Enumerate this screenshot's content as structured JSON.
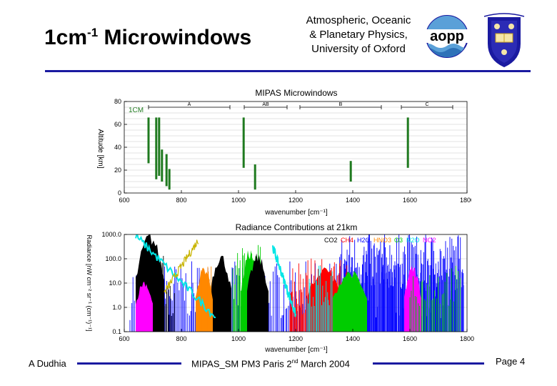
{
  "header": {
    "title_main": "1cm",
    "title_sup": "-1",
    "title_rest": " Microwindows",
    "affiliation": [
      "Atmospheric, Oceanic",
      "& Planetary Physics,",
      "University of Oxford"
    ],
    "aopp_logo_text": "aopp",
    "accent_color": "#1a1aa0"
  },
  "footer": {
    "author": "A Dudhia",
    "meeting_pre": "MIPAS_SM PM3 Paris 2",
    "meeting_sup": "nd",
    "meeting_post": " March 2004",
    "page": "Page 4"
  },
  "chart_data": [
    {
      "type": "bar",
      "title": "MIPAS Microwindows",
      "xlabel": "wavenumber [cm⁻¹]",
      "ylabel": "Altitude [km]",
      "xlim": [
        600,
        1800
      ],
      "ylim": [
        0,
        80
      ],
      "xticks": [
        600,
        800,
        1000,
        1200,
        1400,
        1600,
        1800
      ],
      "xtick_labels": [
        "600",
        "800",
        "1000",
        "1200",
        "1400",
        "1600",
        "1800"
      ],
      "yticks": [
        0,
        20,
        40,
        60,
        80
      ],
      "ytick_labels": [
        "0",
        "20",
        "40",
        "60",
        "80"
      ],
      "annotation": "1CM",
      "bands": [
        {
          "label": "A",
          "x0": 685,
          "x1": 970
        },
        {
          "label": "AB",
          "x0": 1020,
          "x1": 1170
        },
        {
          "label": "B",
          "x0": 1215,
          "x1": 1500
        },
        {
          "label": "C",
          "x0": 1570,
          "x1": 1750
        }
      ],
      "microwindows": [
        {
          "x": 685,
          "y0": 26,
          "y1": 66
        },
        {
          "x": 712,
          "y0": 12,
          "y1": 66
        },
        {
          "x": 722,
          "y0": 15,
          "y1": 66
        },
        {
          "x": 732,
          "y0": 10,
          "y1": 38
        },
        {
          "x": 748,
          "y0": 6,
          "y1": 34
        },
        {
          "x": 758,
          "y0": 3,
          "y1": 21
        },
        {
          "x": 1018,
          "y0": 22,
          "y1": 66
        },
        {
          "x": 1058,
          "y0": 3,
          "y1": 25
        },
        {
          "x": 1393,
          "y0": 10,
          "y1": 28
        },
        {
          "x": 1593,
          "y0": 22,
          "y1": 66
        }
      ],
      "bar_color": "#1f7a1f",
      "grid": true
    },
    {
      "type": "line",
      "title": "Radiance Contributions at 21km",
      "xlabel": "wavenumber [cm⁻¹]",
      "ylabel": "Radiance [nW cm⁻² sr⁻¹ (cm⁻¹)⁻¹]",
      "xlim": [
        600,
        1800
      ],
      "ylog": true,
      "ylim": [
        0.1,
        1000
      ],
      "xticks": [
        600,
        800,
        1000,
        1200,
        1400,
        1600,
        1800
      ],
      "xtick_labels": [
        "600",
        "800",
        "1000",
        "1200",
        "1400",
        "1600",
        "1800"
      ],
      "yticks": [
        0.1,
        1,
        10,
        100,
        1000
      ],
      "ytick_labels": [
        "0.1",
        "1.0",
        "10.0",
        "100.0",
        "1000.0"
      ],
      "series": [
        {
          "name": "CO2",
          "color": "#000000"
        },
        {
          "name": "CH4",
          "color": "#ff0000"
        },
        {
          "name": "H2O",
          "color": "#0000ff"
        },
        {
          "name": "HNO3",
          "color": "#ff8800"
        },
        {
          "name": "O3",
          "color": "#00cc00"
        },
        {
          "name": "N2O",
          "color": "#00e6e6"
        },
        {
          "name": "NO2",
          "color": "#ff00ff"
        }
      ],
      "extra_colors": [
        "#c8b400"
      ],
      "grid": true
    }
  ]
}
